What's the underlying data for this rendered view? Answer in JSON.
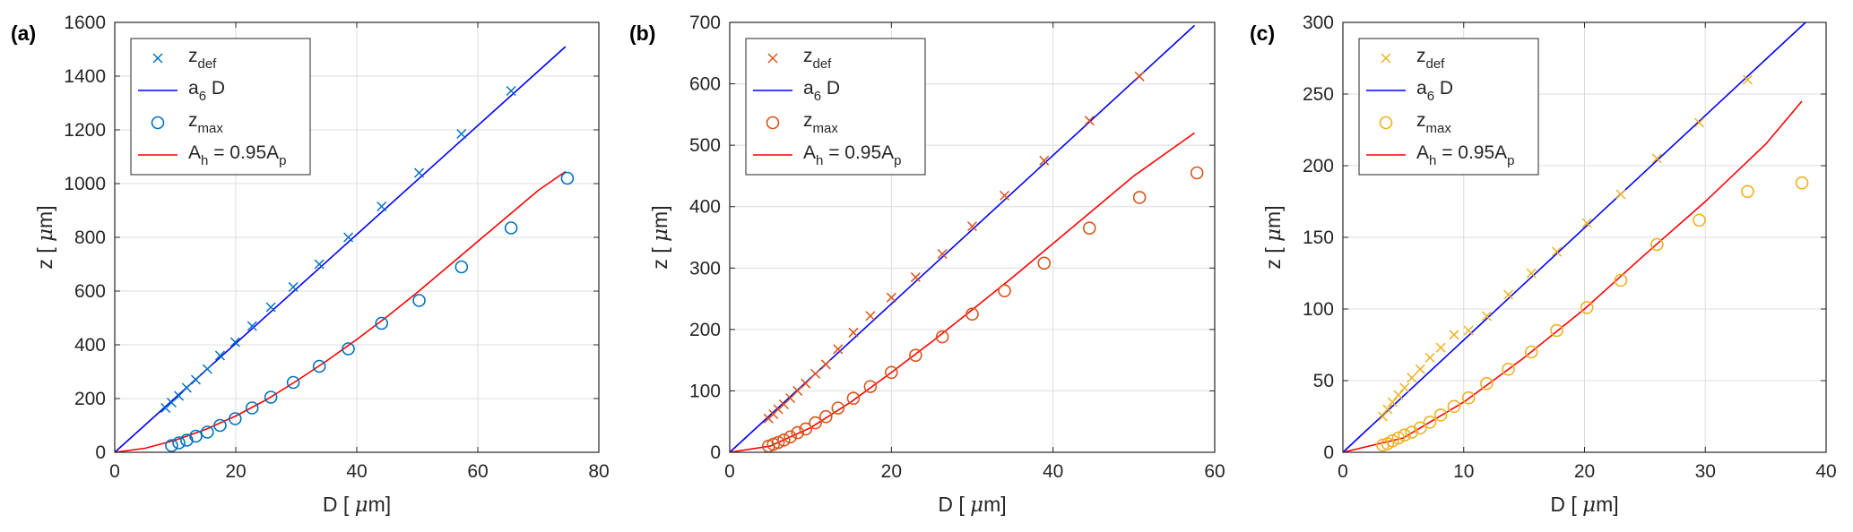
{
  "chart_data": [
    {
      "type": "scatter",
      "panel_label": "(a)",
      "xlabel_main": "D [ ",
      "xlabel_unit": "m]",
      "ylabel_main": "z [ ",
      "ylabel_unit": "m]",
      "mu": "μ",
      "xlim": [
        0,
        80
      ],
      "ylim": [
        0,
        1600
      ],
      "xticks": [
        0,
        20,
        40,
        60,
        80
      ],
      "yticks": [
        0,
        200,
        400,
        600,
        800,
        1000,
        1200,
        1400,
        1600
      ],
      "grid": true,
      "legend_position": "top-left",
      "marker_color": "#0072BD",
      "series": [
        {
          "name": "z",
          "sub": "def",
          "kind": "cross",
          "x": [
            8.4,
            9.4,
            10.6,
            11.9,
            13.4,
            15.3,
            17.4,
            19.9,
            22.7,
            25.8,
            29.5,
            33.8,
            38.6,
            44.1,
            50.3,
            57.3,
            65.5
          ],
          "y": [
            165,
            185,
            210,
            240,
            270,
            310,
            360,
            410,
            470,
            540,
            615,
            700,
            800,
            915,
            1040,
            1185,
            1345
          ]
        },
        {
          "name": "a",
          "sub": "6",
          "suffix": "D",
          "kind": "line",
          "color": "#0000FF",
          "x": [
            0,
            74.5
          ],
          "y": [
            0,
            1510
          ]
        },
        {
          "name": "z",
          "sub": "max",
          "kind": "circle",
          "x": [
            9.4,
            10.6,
            11.9,
            13.4,
            15.3,
            17.4,
            19.9,
            22.7,
            25.8,
            29.5,
            33.8,
            38.6,
            44.1,
            50.3,
            57.3,
            65.5,
            74.8
          ],
          "y": [
            25,
            35,
            45,
            60,
            75,
            100,
            125,
            165,
            205,
            260,
            320,
            385,
            480,
            565,
            690,
            835,
            1020
          ]
        },
        {
          "name": "A",
          "sub": "h",
          "suffix": "= 0.95A",
          "suffix_sub": "p",
          "kind": "line",
          "color": "#FF0000",
          "x": [
            0,
            5,
            10,
            15,
            20,
            25,
            30,
            35,
            40,
            45,
            50,
            55,
            60,
            65,
            70,
            74.5
          ],
          "y": [
            0,
            15,
            45,
            85,
            135,
            195,
            265,
            340,
            420,
            505,
            595,
            690,
            785,
            880,
            975,
            1045
          ]
        }
      ]
    },
    {
      "type": "scatter",
      "panel_label": "(b)",
      "xlabel_main": "D [ ",
      "xlabel_unit": "m]",
      "ylabel_main": "z [ ",
      "ylabel_unit": "m]",
      "mu": "μ",
      "xlim": [
        0,
        60
      ],
      "ylim": [
        0,
        700
      ],
      "xticks": [
        0,
        20,
        40,
        60
      ],
      "yticks": [
        0,
        100,
        200,
        300,
        400,
        500,
        600,
        700
      ],
      "grid": true,
      "legend_position": "top-left",
      "marker_color": "#D95319",
      "series": [
        {
          "name": "z",
          "sub": "def",
          "kind": "cross",
          "x": [
            4.8,
            5.4,
            6.0,
            6.7,
            7.5,
            8.4,
            9.4,
            10.6,
            11.9,
            13.4,
            15.3,
            17.4,
            20.0,
            23.0,
            26.3,
            30.0,
            34.0,
            38.9,
            44.5,
            50.7
          ],
          "y": [
            55,
            62,
            70,
            78,
            88,
            100,
            112,
            128,
            143,
            168,
            195,
            222,
            252,
            285,
            323,
            368,
            418,
            475,
            540,
            612
          ]
        },
        {
          "name": "a",
          "sub": "6",
          "suffix": "D",
          "kind": "line",
          "color": "#0000FF",
          "x": [
            0,
            57.5
          ],
          "y": [
            0,
            695
          ]
        },
        {
          "name": "z",
          "sub": "max",
          "kind": "circle",
          "x": [
            4.8,
            5.4,
            6.0,
            6.7,
            7.5,
            8.4,
            9.4,
            10.6,
            11.9,
            13.4,
            15.3,
            17.4,
            20.0,
            23.0,
            26.3,
            30.0,
            34.0,
            38.9,
            44.5,
            50.7,
            57.8
          ],
          "y": [
            10,
            13,
            16,
            20,
            25,
            32,
            38,
            48,
            58,
            72,
            88,
            107,
            130,
            158,
            188,
            225,
            263,
            308,
            365,
            415,
            455
          ]
        },
        {
          "name": "A",
          "sub": "h",
          "suffix": "= 0.95A",
          "suffix_sub": "p",
          "kind": "line",
          "color": "#FF0000",
          "x": [
            0,
            5,
            10,
            15,
            20,
            25,
            30,
            35,
            40,
            45,
            50,
            57.5
          ],
          "y": [
            0,
            10,
            40,
            82,
            130,
            180,
            232,
            285,
            340,
            395,
            450,
            520
          ]
        }
      ]
    },
    {
      "type": "scatter",
      "panel_label": "(c)",
      "xlabel_main": "D [ ",
      "xlabel_unit": "m]",
      "ylabel_main": "z [ ",
      "ylabel_unit": "m]",
      "mu": "μ",
      "xlim": [
        0,
        40
      ],
      "ylim": [
        0,
        300
      ],
      "xticks": [
        0,
        10,
        20,
        30,
        40
      ],
      "yticks": [
        0,
        50,
        100,
        150,
        200,
        250,
        300
      ],
      "grid": true,
      "legend_position": "top-left",
      "marker_color": "#EDB120",
      "series": [
        {
          "name": "z",
          "sub": "def",
          "kind": "cross",
          "x": [
            3.3,
            3.7,
            4.1,
            4.6,
            5.1,
            5.7,
            6.4,
            7.2,
            8.1,
            9.2,
            10.4,
            11.9,
            13.7,
            15.6,
            17.7,
            20.2,
            23.0,
            26.0,
            29.5,
            33.5
          ],
          "y": [
            25,
            30,
            35,
            40,
            45,
            52,
            58,
            66,
            73,
            82,
            85,
            95,
            110,
            125,
            140,
            160,
            180,
            205,
            230,
            260
          ]
        },
        {
          "name": "a",
          "sub": "6",
          "suffix": "D",
          "kind": "line",
          "color": "#0000FF",
          "x": [
            0,
            38.3
          ],
          "y": [
            0,
            300
          ]
        },
        {
          "name": "z",
          "sub": "max",
          "kind": "circle",
          "x": [
            3.3,
            3.7,
            4.1,
            4.6,
            5.1,
            5.7,
            6.4,
            7.2,
            8.1,
            9.2,
            10.4,
            11.9,
            13.7,
            15.6,
            17.7,
            20.2,
            23.0,
            26.0,
            29.5,
            33.5,
            38.0
          ],
          "y": [
            5,
            6,
            8,
            10,
            12,
            14,
            17,
            21,
            26,
            32,
            38,
            48,
            58,
            70,
            85,
            101,
            120,
            145,
            162,
            182,
            188
          ]
        },
        {
          "name": "A",
          "sub": "h",
          "suffix": "= 0.95A",
          "suffix_sub": "p",
          "kind": "line",
          "color": "#FF0000",
          "x": [
            0,
            5,
            10,
            15,
            20,
            25,
            30,
            35,
            38.0
          ],
          "y": [
            0,
            10,
            35,
            66,
            100,
            138,
            175,
            215,
            245
          ]
        }
      ]
    }
  ]
}
